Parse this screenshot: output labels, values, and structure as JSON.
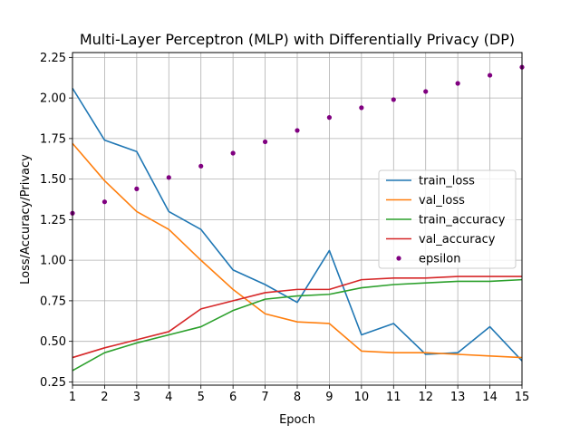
{
  "chart_data": {
    "type": "line",
    "title": "Multi-Layer Perceptron (MLP) with Differentially Privacy (DP)",
    "xlabel": "Epoch",
    "ylabel": "Loss/Accuracy/Privacy",
    "x": [
      1,
      2,
      3,
      4,
      5,
      6,
      7,
      8,
      9,
      10,
      11,
      12,
      13,
      14,
      15
    ],
    "xlim": [
      1,
      15
    ],
    "ylim": [
      0.23,
      2.28
    ],
    "xticks": [
      1,
      2,
      3,
      4,
      5,
      6,
      7,
      8,
      9,
      10,
      11,
      12,
      13,
      14,
      15
    ],
    "yticks": [
      0.25,
      0.5,
      0.75,
      1.0,
      1.25,
      1.5,
      1.75,
      2.0,
      2.25
    ],
    "ytick_labels": [
      "0.25",
      "0.50",
      "0.75",
      "1.00",
      "1.25",
      "1.50",
      "1.75",
      "2.00",
      "2.25"
    ],
    "grid": true,
    "legend_position": "center-right",
    "series": [
      {
        "name": "train_loss",
        "style": "line",
        "color": "#1f77b4",
        "values": [
          2.06,
          1.74,
          1.67,
          1.3,
          1.19,
          0.94,
          0.85,
          0.74,
          1.06,
          0.54,
          0.61,
          0.42,
          0.43,
          0.59,
          0.38
        ]
      },
      {
        "name": "val_loss",
        "style": "line",
        "color": "#ff7f0e",
        "values": [
          1.72,
          1.49,
          1.3,
          1.19,
          1.0,
          0.82,
          0.67,
          0.62,
          0.61,
          0.44,
          0.43,
          0.43,
          0.42,
          0.41,
          0.4
        ]
      },
      {
        "name": "train_accuracy",
        "style": "line",
        "color": "#2ca02c",
        "values": [
          0.32,
          0.43,
          0.49,
          0.54,
          0.59,
          0.69,
          0.76,
          0.78,
          0.79,
          0.83,
          0.85,
          0.86,
          0.87,
          0.87,
          0.88
        ]
      },
      {
        "name": "val_accuracy",
        "style": "line",
        "color": "#d62728",
        "values": [
          0.4,
          0.46,
          0.51,
          0.56,
          0.7,
          0.75,
          0.8,
          0.82,
          0.82,
          0.88,
          0.89,
          0.89,
          0.9,
          0.9,
          0.9
        ]
      },
      {
        "name": "epsilon",
        "style": "scatter",
        "color": "#800080",
        "values": [
          1.29,
          1.36,
          1.44,
          1.51,
          1.58,
          1.66,
          1.73,
          1.8,
          1.88,
          1.94,
          1.99,
          2.04,
          2.09,
          2.14,
          2.19
        ]
      }
    ]
  }
}
